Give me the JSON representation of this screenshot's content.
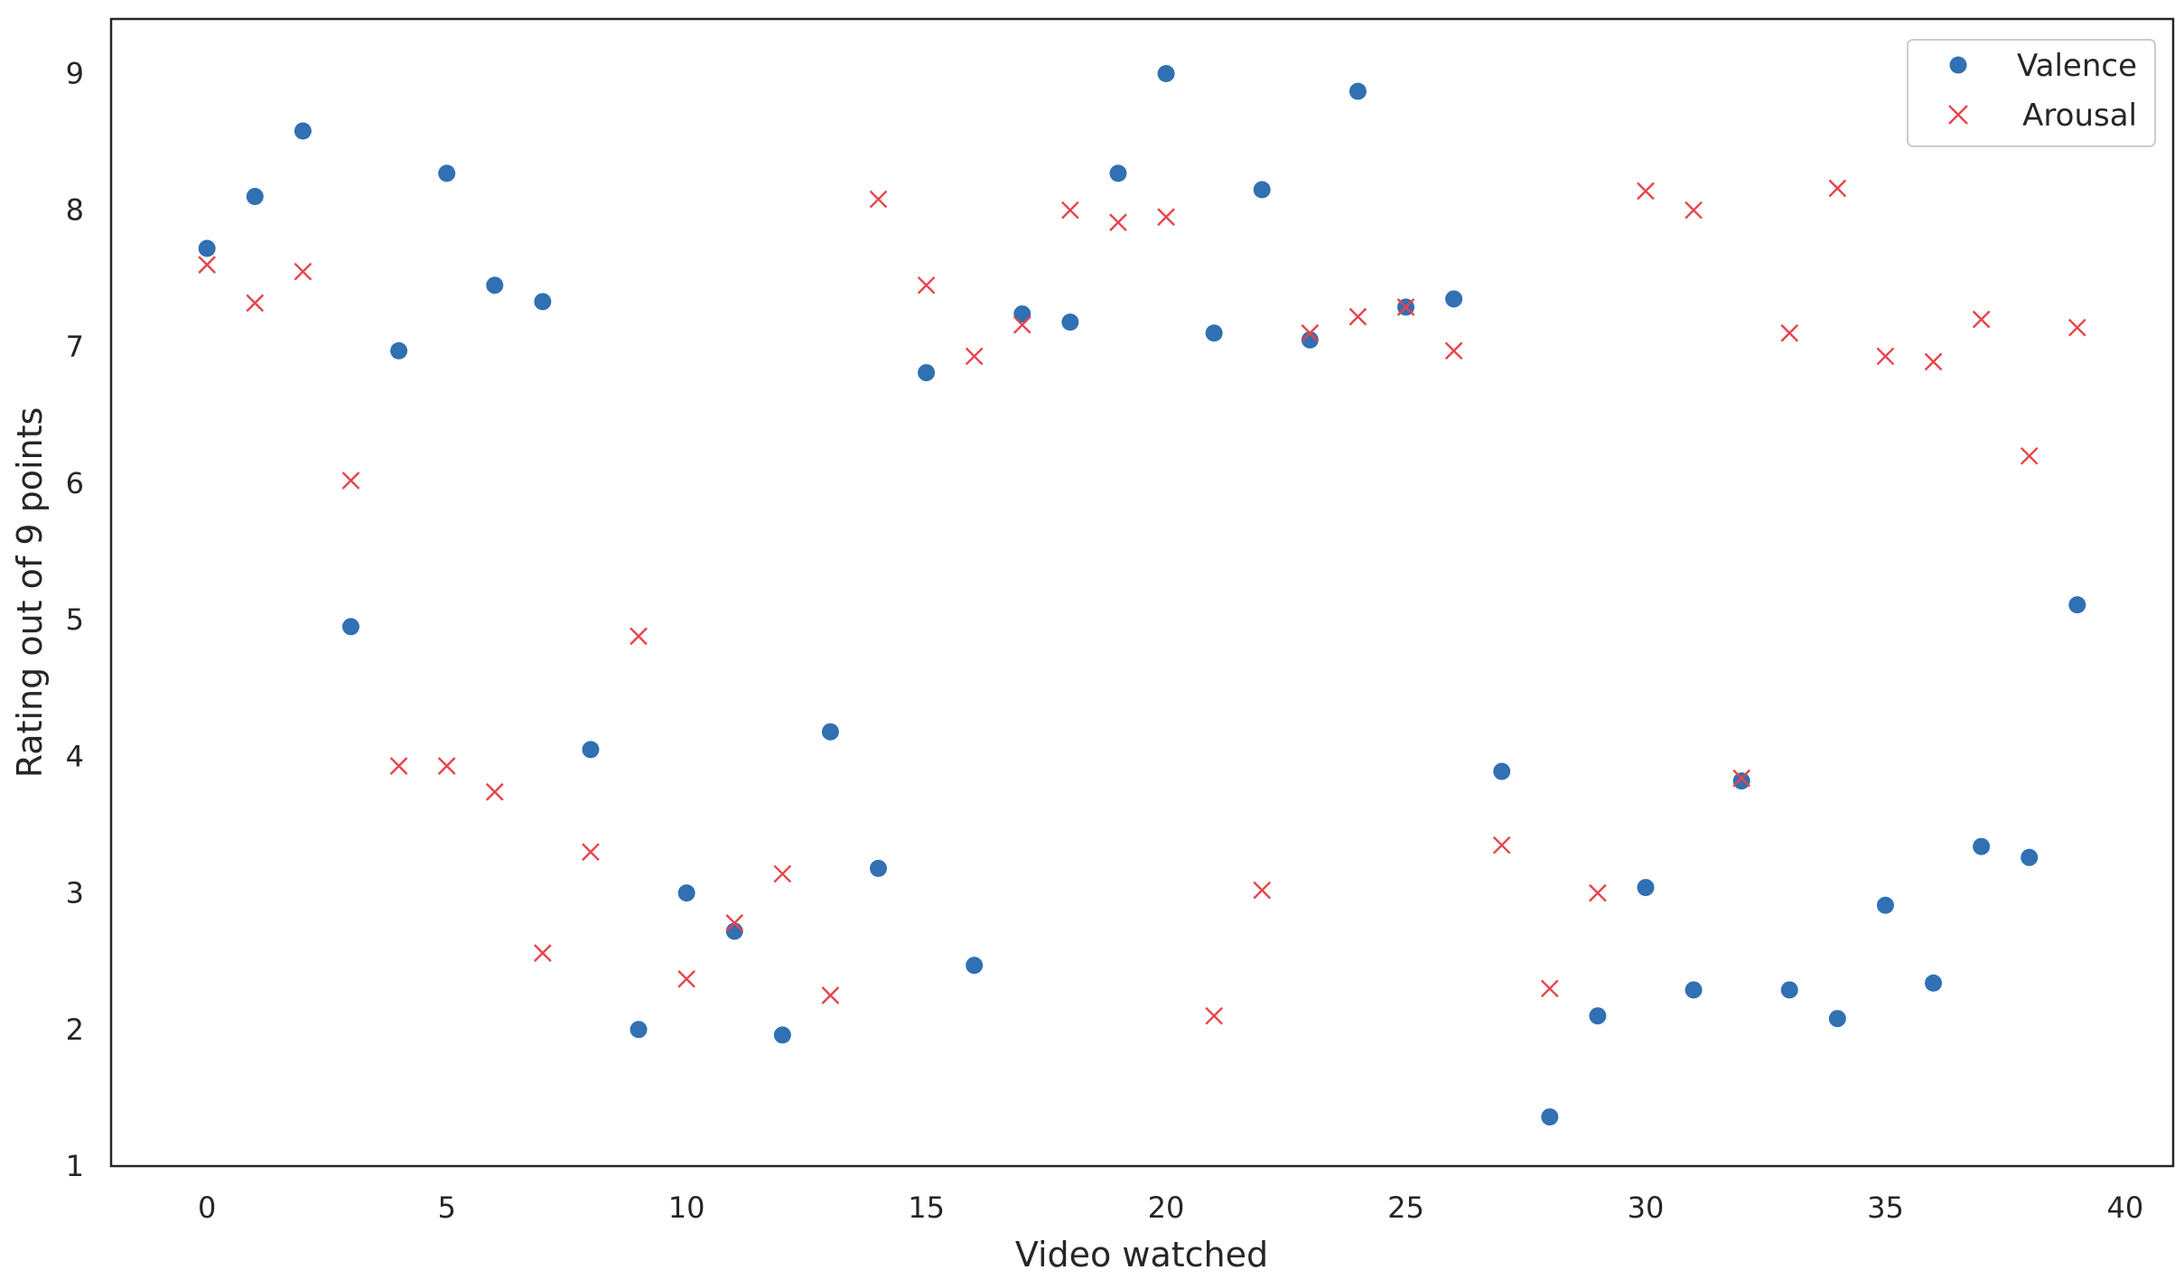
{
  "chart_data": {
    "type": "scatter",
    "title": "",
    "xlabel": "Video watched",
    "ylabel": "Rating out of 9 points",
    "xlim": [
      -2,
      41
    ],
    "ylim": [
      1,
      9.4
    ],
    "xticks": [
      0,
      5,
      10,
      15,
      20,
      25,
      30,
      35,
      40
    ],
    "yticks": [
      1,
      2,
      3,
      4,
      5,
      6,
      7,
      8,
      9
    ],
    "grid": false,
    "legend_position": "top-right",
    "series": [
      {
        "name": "Valence",
        "marker": "circle",
        "color": "#3070b3",
        "x": [
          0,
          1,
          2,
          3,
          4,
          5,
          6,
          7,
          8,
          9,
          10,
          11,
          12,
          13,
          14,
          15,
          16,
          17,
          18,
          19,
          20,
          21,
          22,
          23,
          24,
          25,
          26,
          27,
          28,
          29,
          30,
          31,
          32,
          33,
          34,
          35,
          36,
          37,
          38,
          39
        ],
        "y": [
          7.72,
          8.1,
          8.58,
          4.95,
          6.97,
          8.27,
          7.45,
          7.33,
          4.05,
          2.0,
          3.0,
          2.72,
          1.96,
          4.18,
          3.18,
          6.81,
          2.47,
          7.24,
          7.18,
          8.27,
          9.0,
          7.1,
          8.15,
          7.05,
          8.87,
          7.29,
          7.35,
          3.89,
          1.36,
          2.1,
          3.04,
          2.29,
          3.82,
          2.29,
          2.08,
          2.91,
          2.34,
          3.34,
          3.26,
          5.11
        ]
      },
      {
        "name": "Arousal",
        "marker": "x",
        "color": "#e8434a",
        "x": [
          0,
          1,
          2,
          3,
          4,
          5,
          6,
          7,
          8,
          9,
          10,
          11,
          12,
          13,
          14,
          15,
          16,
          17,
          18,
          19,
          20,
          21,
          22,
          23,
          24,
          25,
          26,
          27,
          28,
          29,
          30,
          31,
          32,
          33,
          34,
          35,
          36,
          37,
          38,
          39
        ],
        "y": [
          7.6,
          7.32,
          7.55,
          6.02,
          3.93,
          3.93,
          3.74,
          2.56,
          3.3,
          4.88,
          2.37,
          2.78,
          3.14,
          2.25,
          8.08,
          7.45,
          6.93,
          7.16,
          8.0,
          7.91,
          7.95,
          2.1,
          3.02,
          7.1,
          7.22,
          7.29,
          6.97,
          3.35,
          2.3,
          3.0,
          8.14,
          8.0,
          3.84,
          7.1,
          8.16,
          6.93,
          6.89,
          7.2,
          6.2,
          7.14
        ]
      }
    ]
  }
}
